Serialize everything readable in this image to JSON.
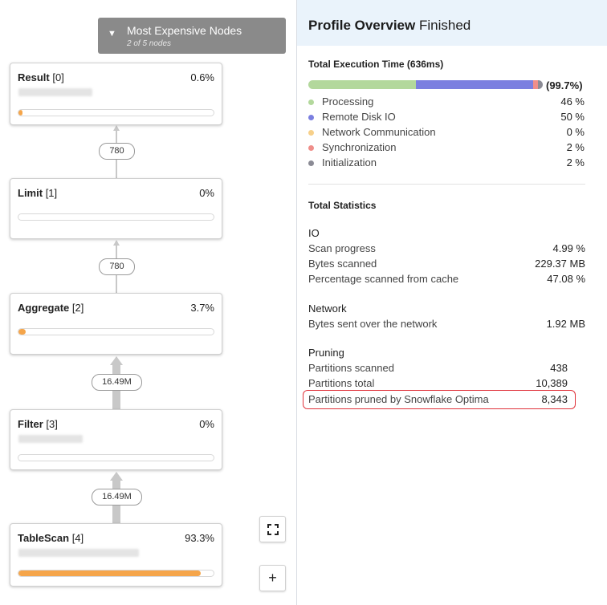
{
  "graph": {
    "expensive": {
      "title": "Most Expensive Nodes",
      "subtitle": "2 of 5 nodes"
    },
    "nodes": [
      {
        "name": "Result",
        "index": "[0]",
        "percent": "0.6%",
        "fill": 0.006
      },
      {
        "name": "Limit",
        "index": "[1]",
        "percent": "0%",
        "fill": 0
      },
      {
        "name": "Aggregate",
        "index": "[2]",
        "percent": "3.7%",
        "fill": 0.037
      },
      {
        "name": "Filter",
        "index": "[3]",
        "percent": "0%",
        "fill": 0
      },
      {
        "name": "TableScan",
        "index": "[4]",
        "percent": "93.3%",
        "fill": 0.933
      }
    ],
    "edges": [
      "780",
      "780",
      "16.49M",
      "16.49M"
    ],
    "controls": {
      "fit_icon": "fit-screen-icon",
      "zoom_in_label": "+"
    }
  },
  "overview": {
    "title_bold": "Profile Overview",
    "title_status": "Finished",
    "execution": {
      "title": "Total Execution Time (636ms)",
      "total": "(99.7%)",
      "segments": [
        {
          "label": "Processing",
          "value": "46 %",
          "fraction": 0.46,
          "color": "#b3d89c"
        },
        {
          "label": "Remote Disk IO",
          "value": "50 %",
          "fraction": 0.5,
          "color": "#7b7fe0"
        },
        {
          "label": "Network Communication",
          "value": "0 %",
          "fraction": 0.0,
          "color": "#f7d08a"
        },
        {
          "label": "Synchronization",
          "value": "2 %",
          "fraction": 0.02,
          "color": "#ef8e8a"
        },
        {
          "label": "Initialization",
          "value": "2 %",
          "fraction": 0.02,
          "color": "#8b8b95"
        }
      ]
    },
    "statistics": {
      "title": "Total Statistics",
      "groups": [
        {
          "name": "IO",
          "rows": [
            {
              "label": "Scan progress",
              "value": "4.99 %"
            },
            {
              "label": "Bytes scanned",
              "value": "229.37 MB"
            },
            {
              "label": "Percentage scanned from cache",
              "value": "47.08 %"
            }
          ]
        },
        {
          "name": "Network",
          "rows": [
            {
              "label": "Bytes sent over the network",
              "value": "1.92 MB"
            }
          ]
        },
        {
          "name": "Pruning",
          "rows": [
            {
              "label": "Partitions scanned",
              "value": "438"
            },
            {
              "label": "Partitions total",
              "value": "10,389"
            },
            {
              "label": "Partitions pruned by Snowflake Optima",
              "value": "8,343"
            }
          ]
        }
      ]
    },
    "highlight_color": "#e0323a"
  }
}
